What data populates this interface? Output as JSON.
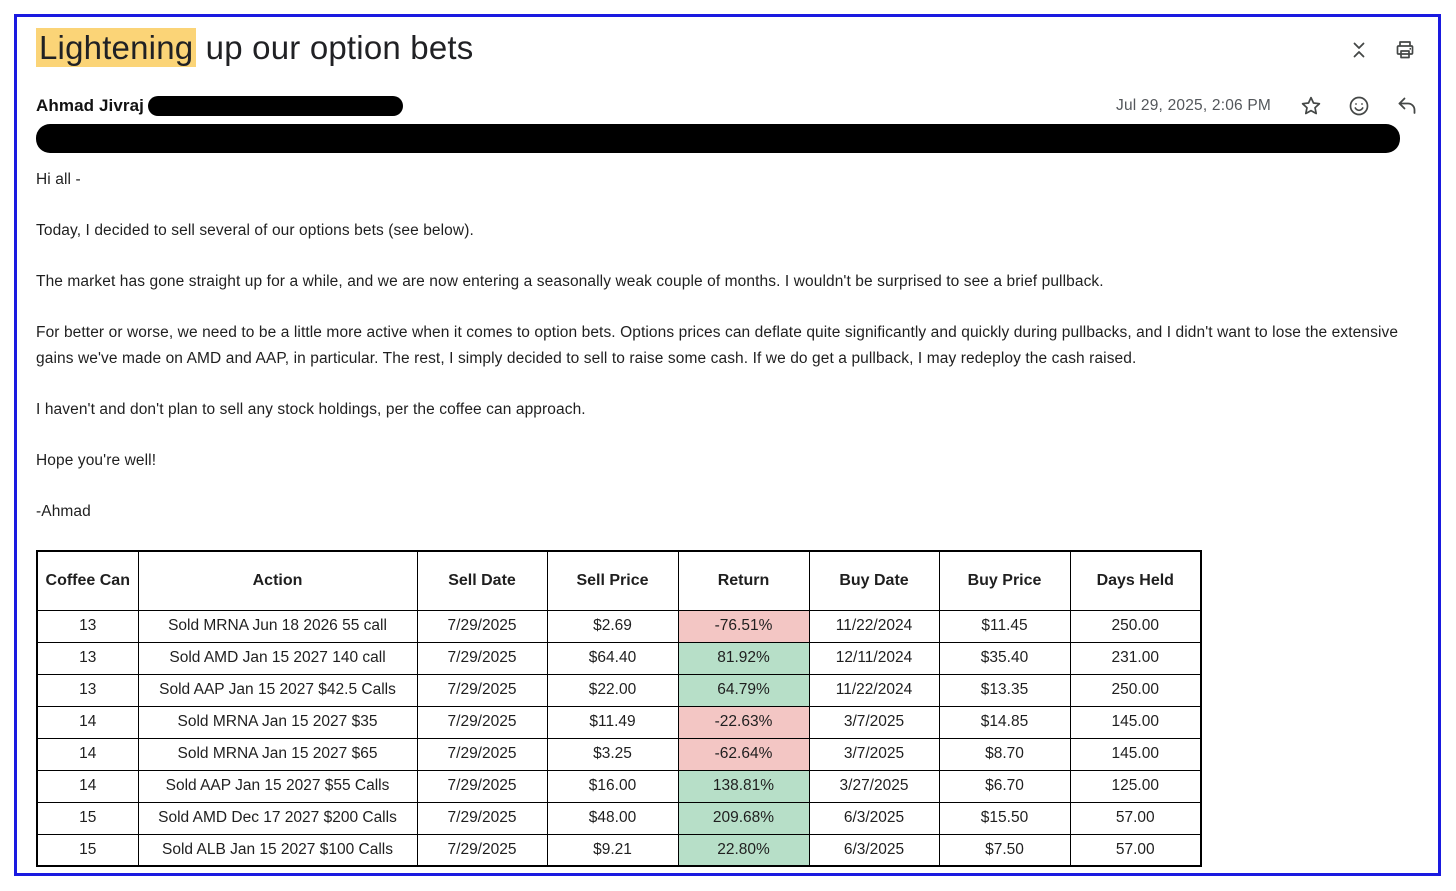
{
  "email": {
    "subject_highlight": "Lightening",
    "subject_rest": " up our option bets",
    "sender": "Ahmad Jivraj",
    "date": "Jul 29, 2025, 2:06 PM",
    "body": [
      "Hi all -",
      "Today, I decided to sell several of our options bets (see below).",
      "The market has gone straight up for a while, and we are now entering a seasonally weak couple of months. I wouldn't be surprised to see a brief pullback.",
      "For better or worse, we need to be a little more active when it comes to option bets. Options prices can deflate quite significantly and quickly during pullbacks, and I didn't want to lose the extensive gains we've made on AMD and AAP, in particular. The rest, I simply decided to sell to raise some cash. If we do get a pullback, I may redeploy the cash raised.",
      "I haven't and don't plan to sell any stock holdings, per the coffee can approach.",
      "Hope you're well!",
      "-Ahmad"
    ]
  },
  "table": {
    "headers": [
      "Coffee Can",
      "Action",
      "Sell Date",
      "Sell Price",
      "Return",
      "Buy Date",
      "Buy Price",
      "Days Held"
    ],
    "keys": [
      "coffee-can",
      "action",
      "sell-date",
      "sell-price",
      "return",
      "buy-date",
      "buy-price",
      "days-held"
    ],
    "rows": [
      {
        "coffee_can": "13",
        "action": "Sold MRNA Jun 18 2026 55 call",
        "sell_date": "7/29/2025",
        "sell_price": "$2.69",
        "return": "-76.51%",
        "buy_date": "11/22/2024",
        "buy_price": "$11.45",
        "days_held": "250.00"
      },
      {
        "coffee_can": "13",
        "action": "Sold AMD Jan 15 2027 140 call",
        "sell_date": "7/29/2025",
        "sell_price": "$64.40",
        "return": "81.92%",
        "buy_date": "12/11/2024",
        "buy_price": "$35.40",
        "days_held": "231.00"
      },
      {
        "coffee_can": "13",
        "action": "Sold AAP Jan 15 2027 $42.5 Calls",
        "sell_date": "7/29/2025",
        "sell_price": "$22.00",
        "return": "64.79%",
        "buy_date": "11/22/2024",
        "buy_price": "$13.35",
        "days_held": "250.00"
      },
      {
        "coffee_can": "14",
        "action": "Sold MRNA Jan 15 2027 $35",
        "sell_date": "7/29/2025",
        "sell_price": "$11.49",
        "return": "-22.63%",
        "buy_date": "3/7/2025",
        "buy_price": "$14.85",
        "days_held": "145.00"
      },
      {
        "coffee_can": "14",
        "action": "Sold MRNA Jan 15 2027 $65",
        "sell_date": "7/29/2025",
        "sell_price": "$3.25",
        "return": "-62.64%",
        "buy_date": "3/7/2025",
        "buy_price": "$8.70",
        "days_held": "145.00"
      },
      {
        "coffee_can": "14",
        "action": "Sold AAP Jan 15 2027 $55 Calls",
        "sell_date": "7/29/2025",
        "sell_price": "$16.00",
        "return": "138.81%",
        "buy_date": "3/27/2025",
        "buy_price": "$6.70",
        "days_held": "125.00"
      },
      {
        "coffee_can": "15",
        "action": "Sold AMD Dec 17 2027 $200 Calls",
        "sell_date": "7/29/2025",
        "sell_price": "$48.00",
        "return": "209.68%",
        "buy_date": "6/3/2025",
        "buy_price": "$15.50",
        "days_held": "57.00"
      },
      {
        "coffee_can": "15",
        "action": "Sold ALB Jan 15 2027 $100 Calls",
        "sell_date": "7/29/2025",
        "sell_price": "$9.21",
        "return": "22.80%",
        "buy_date": "6/3/2025",
        "buy_price": "$7.50",
        "days_held": "57.00"
      }
    ]
  },
  "colors": {
    "highlight": "#fbd477",
    "frame_border": "#1a1ae0",
    "return_negative_bg": "#f3c6c4",
    "return_positive_bg": "#b7dfc8",
    "icon_gray": "#444746"
  }
}
